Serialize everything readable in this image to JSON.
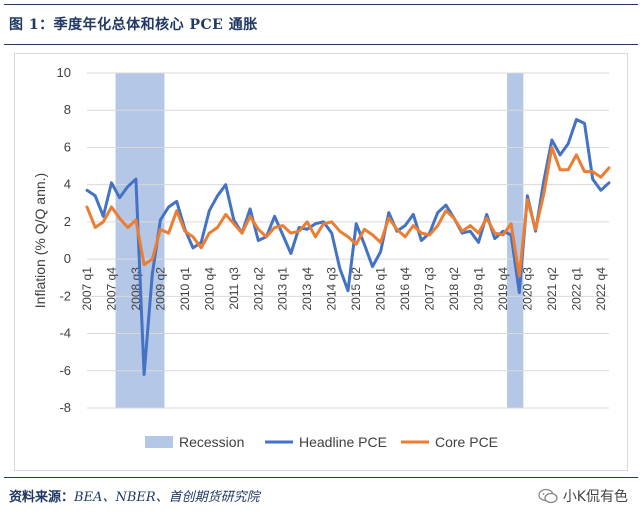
{
  "figure": {
    "title": "图 1：季度年化总体和核心 PCE 通胀",
    "source_label": "资料来源：",
    "source_text": "BEA、NBER、首创期货研究院",
    "watermark": "小K侃有色"
  },
  "colors": {
    "headline": "#4472c4",
    "core": "#ed7d31",
    "recession": "#b4c7e7",
    "frame": "#1f3864"
  },
  "chart_data": {
    "type": "line",
    "ylabel": "Inflation (% Q/Q ann.)",
    "ylim": [
      -8,
      10
    ],
    "yticks": [
      -8,
      -6,
      -4,
      -2,
      0,
      2,
      4,
      6,
      8,
      10
    ],
    "grid": true,
    "legend": "bottom",
    "legend_entries": [
      "Recession",
      "Headline PCE",
      "Core PCE"
    ],
    "x": [
      "2007 q1",
      "2007 q2",
      "2007 q3",
      "2007 q4",
      "2008 q1",
      "2008 q2",
      "2008 q3",
      "2008 q4",
      "2009 q1",
      "2009 q2",
      "2009 q3",
      "2009 q4",
      "2010 q1",
      "2010 q2",
      "2010 q3",
      "2010 q4",
      "2011 q1",
      "2011 q2",
      "2011 q3",
      "2011 q4",
      "2012 q1",
      "2012 q2",
      "2012 q3",
      "2012 q4",
      "2013 q1",
      "2013 q2",
      "2013 q3",
      "2013 q4",
      "2014 q1",
      "2014 q2",
      "2014 q3",
      "2014 q4",
      "2015 q1",
      "2015 q2",
      "2015 q3",
      "2015 q4",
      "2016 q1",
      "2016 q2",
      "2016 q3",
      "2016 q4",
      "2017 q1",
      "2017 q2",
      "2017 q3",
      "2017 q4",
      "2018 q1",
      "2018 q2",
      "2018 q3",
      "2018 q4",
      "2019 q1",
      "2019 q2",
      "2019 q3",
      "2019 q4",
      "2020 q1",
      "2020 q2",
      "2020 q3",
      "2020 q4",
      "2021 q1",
      "2021 q2",
      "2021 q3",
      "2021 q4",
      "2022 q1",
      "2022 q2",
      "2022 q3",
      "2022 q4",
      "2023 q1"
    ],
    "xtick_labels": [
      "2007 q1",
      "2007 q4",
      "2008 q3",
      "2009 q2",
      "2010 q1",
      "2010 q4",
      "2011 q3",
      "2012 q2",
      "2013 q1",
      "2013 q4",
      "2014 q3",
      "2015 q2",
      "2016 q1",
      "2016 q4",
      "2017 q3",
      "2018 q2",
      "2019 q1",
      "2019 q4",
      "2020 q3",
      "2021 q2",
      "2022 q1",
      "2022 q4"
    ],
    "recessions": [
      [
        "2008 q1",
        "2009 q2"
      ],
      [
        "2020 q1",
        "2020 q2"
      ]
    ],
    "series": [
      {
        "name": "Headline PCE",
        "values": [
          3.7,
          3.4,
          2.3,
          4.1,
          3.3,
          3.9,
          4.3,
          -6.2,
          -0.8,
          2.1,
          2.8,
          3.1,
          1.6,
          0.6,
          0.9,
          2.6,
          3.4,
          4.0,
          2.1,
          1.4,
          2.7,
          1.0,
          1.2,
          2.3,
          1.3,
          0.3,
          1.7,
          1.6,
          1.9,
          2.0,
          1.4,
          -0.5,
          -1.7,
          1.9,
          0.8,
          -0.4,
          0.4,
          2.5,
          1.5,
          1.8,
          2.4,
          1.0,
          1.4,
          2.5,
          2.9,
          2.2,
          1.4,
          1.5,
          0.9,
          2.4,
          1.1,
          1.5,
          1.3,
          -1.8,
          3.4,
          1.5,
          4.2,
          6.4,
          5.6,
          6.2,
          7.5,
          7.3,
          4.3,
          3.7,
          4.1
        ]
      },
      {
        "name": "Core PCE",
        "values": [
          2.8,
          1.7,
          2.0,
          2.8,
          2.2,
          1.7,
          2.1,
          -0.3,
          0.0,
          1.6,
          1.4,
          2.6,
          1.5,
          1.2,
          0.6,
          1.4,
          1.7,
          2.4,
          1.9,
          1.4,
          2.3,
          1.6,
          1.2,
          1.7,
          1.8,
          1.4,
          1.5,
          2.0,
          1.2,
          1.9,
          2.0,
          1.5,
          1.2,
          0.8,
          1.6,
          1.3,
          0.9,
          2.2,
          1.6,
          1.2,
          1.8,
          1.4,
          1.3,
          1.8,
          2.6,
          2.2,
          1.5,
          1.8,
          1.4,
          2.2,
          1.4,
          1.3,
          1.9,
          -0.9,
          3.2,
          1.6,
          3.5,
          6.0,
          4.8,
          4.8,
          5.6,
          4.7,
          4.7,
          4.4,
          4.9
        ]
      }
    ]
  }
}
